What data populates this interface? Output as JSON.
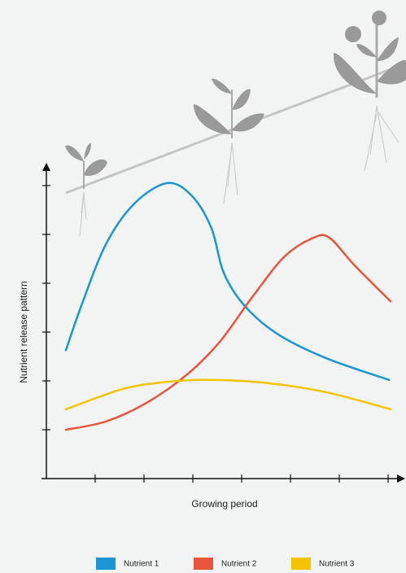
{
  "chart_data": {
    "type": "line",
    "x_label": "Growing period",
    "y_label": "Nutrient release pattern",
    "xlim": [
      0,
      7.3
    ],
    "ylim": [
      0,
      6.4
    ],
    "xticks": [
      1,
      2,
      3,
      4,
      5,
      6,
      7
    ],
    "yticks": [
      1,
      2,
      3,
      4,
      5,
      6
    ],
    "series": [
      {
        "name": "Nutrient 1",
        "color": "#1a96d4",
        "x": [
          0.4,
          0.72,
          1.22,
          1.8,
          2.47,
          2.97,
          3.38,
          3.63,
          4.05,
          4.72,
          5.72,
          7.02
        ],
        "values": [
          2.63,
          3.55,
          4.8,
          5.63,
          6.05,
          5.8,
          5.13,
          4.22,
          3.55,
          2.97,
          2.47,
          2.02
        ]
      },
      {
        "name": "Nutrient 2",
        "color": "#e8553d",
        "x": [
          0.4,
          1.22,
          2.05,
          2.88,
          3.55,
          4.22,
          4.88,
          5.47,
          5.8,
          6.3,
          7.05
        ],
        "values": [
          1.0,
          1.17,
          1.55,
          2.13,
          2.8,
          3.72,
          4.55,
          4.93,
          4.93,
          4.38,
          3.63
        ]
      },
      {
        "name": "Nutrient 3",
        "color": "#f5c400",
        "x": [
          0.4,
          1.55,
          2.38,
          3.22,
          4.38,
          5.72,
          7.05
        ],
        "values": [
          1.42,
          1.83,
          1.97,
          2.02,
          1.97,
          1.77,
          1.42
        ]
      }
    ]
  }
}
